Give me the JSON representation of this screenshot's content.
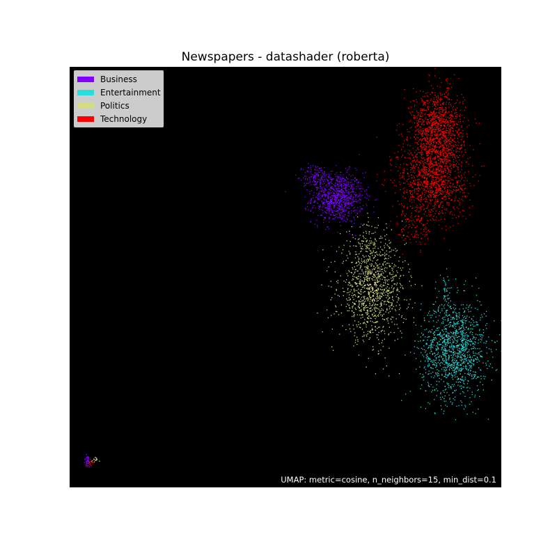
{
  "chart_data": {
    "type": "scatter",
    "title": "Newspapers - datashader (roberta)",
    "xlabel": "",
    "ylabel": "",
    "grid": false,
    "background": "#000000",
    "legend_position": "top-left",
    "annotation": "UMAP: metric=cosine, n_neighbors=15, min_dist=0.1",
    "series": [
      {
        "name": "Business",
        "color": "#7f00ff",
        "clusters": [
          {
            "center": [
              0.62,
              0.69
            ],
            "spread": [
              0.03,
              0.03
            ],
            "count": 900
          },
          {
            "center": [
              0.57,
              0.74
            ],
            "spread": [
              0.015,
              0.015
            ],
            "count": 120
          },
          {
            "center": [
              0.04,
              0.063
            ],
            "spread": [
              0.004,
              0.008
            ],
            "count": 40
          }
        ]
      },
      {
        "name": "Entertainment",
        "color": "#2adddd",
        "clusters": [
          {
            "center": [
              0.89,
              0.33
            ],
            "spread": [
              0.038,
              0.058
            ],
            "count": 1300
          },
          {
            "center": [
              0.87,
              0.46
            ],
            "spread": [
              0.008,
              0.03
            ],
            "count": 40
          }
        ]
      },
      {
        "name": "Politics",
        "color": "#d4dd80",
        "clusters": [
          {
            "center": [
              0.7,
              0.47
            ],
            "spread": [
              0.038,
              0.058
            ],
            "count": 1100
          },
          {
            "center": [
              0.69,
              0.58
            ],
            "spread": [
              0.02,
              0.03
            ],
            "count": 80
          },
          {
            "center": [
              0.06,
              0.065
            ],
            "spread": [
              0.005,
              0.004
            ],
            "count": 15
          }
        ]
      },
      {
        "name": "Technology",
        "color": "#ff0000",
        "clusters": [
          {
            "center": [
              0.85,
              0.85
            ],
            "spread": [
              0.03,
              0.048
            ],
            "count": 1200
          },
          {
            "center": [
              0.84,
              0.73
            ],
            "spread": [
              0.04,
              0.048
            ],
            "count": 1100
          },
          {
            "center": [
              0.8,
              0.62
            ],
            "spread": [
              0.02,
              0.025
            ],
            "count": 100
          },
          {
            "center": [
              0.05,
              0.06
            ],
            "spread": [
              0.005,
              0.005
            ],
            "count": 15
          }
        ]
      }
    ]
  }
}
